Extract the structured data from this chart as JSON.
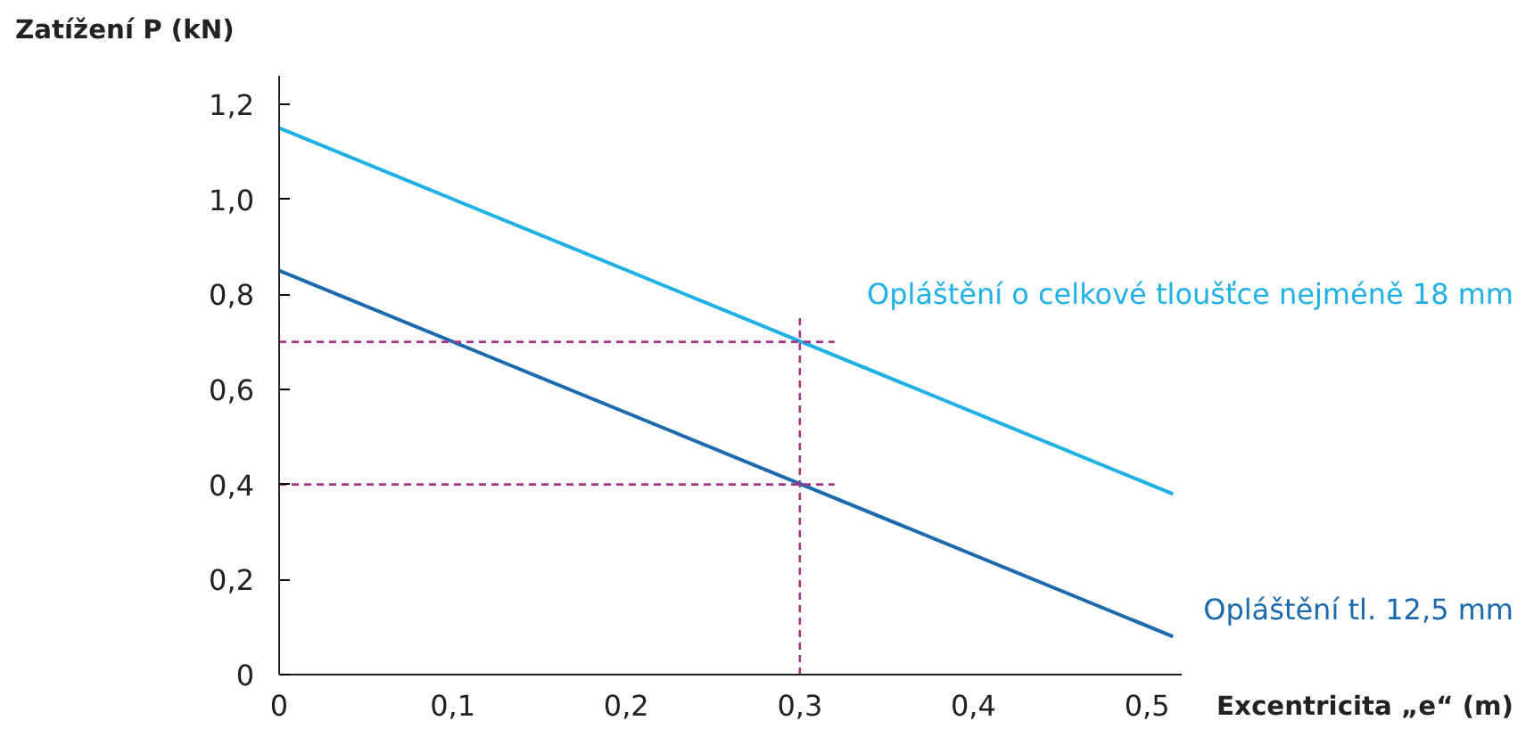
{
  "chart_data": {
    "type": "line",
    "xlabel": "Excentricita „e“ (m)",
    "ylabel": "Zatížení P (kN)",
    "xlim": [
      0,
      0.52
    ],
    "ylim": [
      0,
      1.26
    ],
    "xticks": [
      0,
      {
        "value": 0.1,
        "label": "0,1"
      },
      {
        "value": 0.2,
        "label": "0,2"
      },
      {
        "value": 0.3,
        "label": "0,3"
      },
      {
        "value": 0.4,
        "label": "0,4"
      },
      {
        "value": 0.5,
        "label": "0,5"
      }
    ],
    "yticks": [
      0,
      {
        "value": 0.2,
        "label": "0,2"
      },
      {
        "value": 0.4,
        "label": "0,4"
      },
      {
        "value": 0.6,
        "label": "0,6"
      },
      {
        "value": 0.8,
        "label": "0,8"
      },
      {
        "value": 1.0,
        "label": "1,0"
      },
      {
        "value": 1.2,
        "label": "1,2"
      }
    ],
    "grid": false,
    "line_style": "solid",
    "marker": "none",
    "series": [
      {
        "name": "Opláštění o celkové tloušťce nejméně 18 mm",
        "color": "#1fb0e6",
        "x": [
          0,
          0.515
        ],
        "values": [
          1.15,
          0.38
        ]
      },
      {
        "name": "Opláštění tl. 12,5 mm",
        "color": "#1a6aad",
        "x": [
          0,
          0.515
        ],
        "values": [
          0.85,
          0.08
        ]
      },
      {
        "color": "#a3358a",
        "line_style": "dashed",
        "x": [
          0,
          0.32
        ],
        "values": [
          0.7,
          0.7
        ]
      },
      {
        "color": "#a3358a",
        "line_style": "dashed",
        "x": [
          0,
          0.32
        ],
        "values": [
          0.4,
          0.4
        ]
      },
      {
        "color": "#a3358a",
        "line_style": "dashed",
        "x": [
          0.3,
          0.3
        ],
        "values": [
          0,
          0.75
        ]
      }
    ]
  }
}
